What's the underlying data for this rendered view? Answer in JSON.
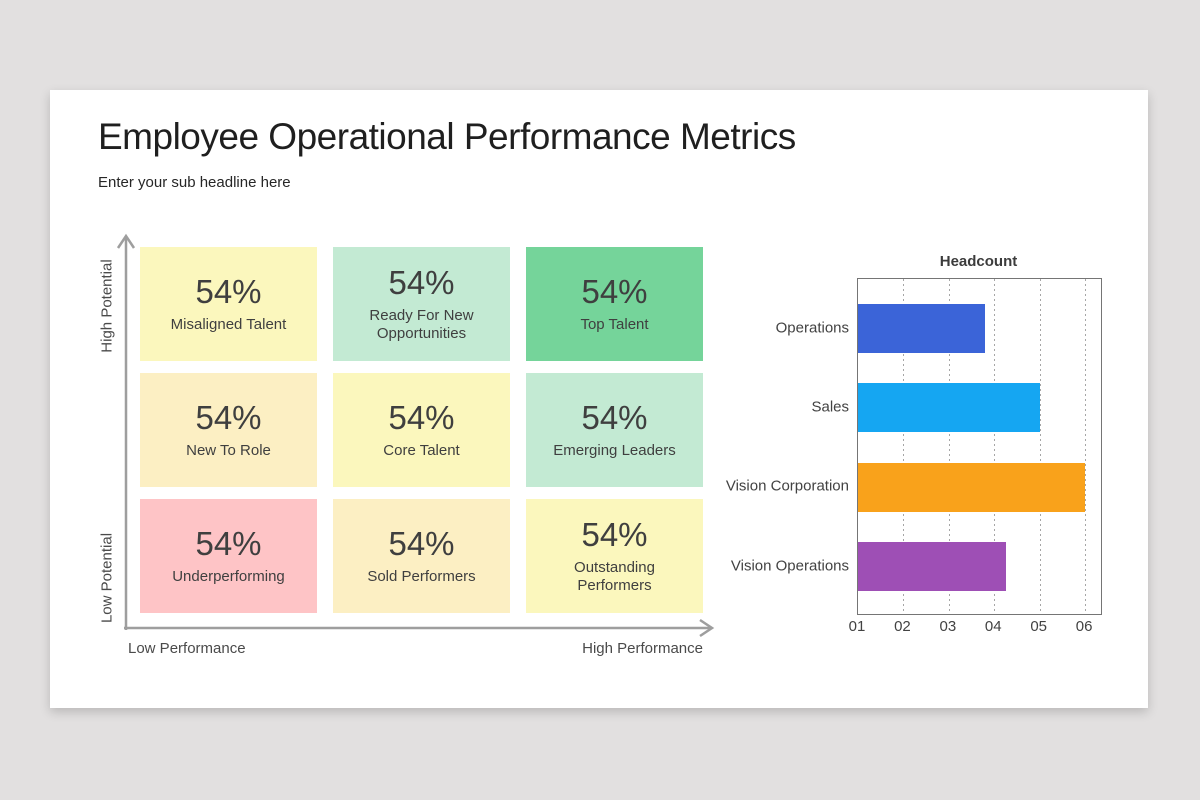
{
  "page": {
    "background": "#e2e0e0"
  },
  "slide": {
    "title": "Employee Operational Performance Metrics",
    "subtitle": "Enter your sub headline here"
  },
  "matrix": {
    "axes": {
      "y_top": "High Potential",
      "y_bottom": "Low Potential",
      "x_left": "Low Performance",
      "x_right": "High Performance"
    },
    "axis_color": "#9e9e9e",
    "cells": [
      {
        "value": "54%",
        "label": "Misaligned Talent",
        "color": "#FBF7BD"
      },
      {
        "value": "54%",
        "label": "Ready For New Opportunities",
        "color": "#C3EAD3"
      },
      {
        "value": "54%",
        "label": "Top Talent",
        "color": "#75D49A"
      },
      {
        "value": "54%",
        "label": "New To Role",
        "color": "#FCEFC3"
      },
      {
        "value": "54%",
        "label": "Core Talent",
        "color": "#FBF7BD"
      },
      {
        "value": "54%",
        "label": "Emerging Leaders",
        "color": "#C3EAD3"
      },
      {
        "value": "54%",
        "label": "Underperforming",
        "color": "#FEC4C6"
      },
      {
        "value": "54%",
        "label": "Sold Performers",
        "color": "#FCEFC3"
      },
      {
        "value": "54%",
        "label": "Outstanding Performers",
        "color": "#FBF7BD"
      }
    ]
  },
  "chart_data": {
    "type": "bar",
    "orientation": "horizontal",
    "title": "Headcount",
    "categories": [
      "Operations",
      "Sales",
      "Vision Corporation",
      "Vision Operations"
    ],
    "values": [
      3.8,
      5.0,
      6.0,
      4.25
    ],
    "colors": [
      "#3B64D8",
      "#15A6F2",
      "#F9A21B",
      "#9E4FB5"
    ],
    "x_ticks": [
      "01",
      "02",
      "03",
      "04",
      "05",
      "06"
    ],
    "tick_values": [
      1,
      2,
      3,
      4,
      5,
      6
    ],
    "xlim": [
      1,
      6.35
    ],
    "grid": "dotted-vertical",
    "grid_color": "#a6a6a6"
  }
}
